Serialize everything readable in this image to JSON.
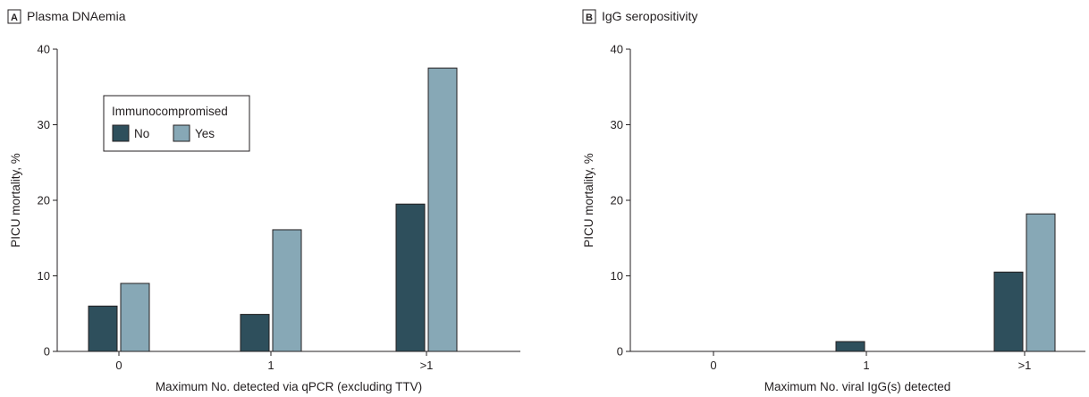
{
  "colors": {
    "no": "#2e4f5c",
    "yes": "#87a8b6",
    "stroke": "#231f20"
  },
  "chart_data": [
    {
      "type": "bar",
      "panel": "A",
      "title": "Plasma DNAemia",
      "xlabel": "Maximum No. detected via qPCR (excluding TTV)",
      "ylabel": "PICU mortality, %",
      "ylim": [
        0,
        40
      ],
      "yticks": [
        0,
        10,
        20,
        30,
        40
      ],
      "categories": [
        "0",
        "1",
        ">1"
      ],
      "legend": {
        "title": "Immunocompromised",
        "position": "upper-left"
      },
      "series": [
        {
          "name": "No",
          "values": [
            6.0,
            4.9,
            19.5
          ]
        },
        {
          "name": "Yes",
          "values": [
            9.0,
            16.1,
            37.5
          ]
        }
      ]
    },
    {
      "type": "bar",
      "panel": "B",
      "title": "IgG seropositivity",
      "xlabel": "Maximum No. viral IgG(s) detected",
      "ylabel": "PICU mortality, %",
      "ylim": [
        0,
        40
      ],
      "yticks": [
        0,
        10,
        20,
        30,
        40
      ],
      "categories": [
        "0",
        "1",
        ">1"
      ],
      "series": [
        {
          "name": "No",
          "values": [
            0,
            1.3,
            10.5
          ]
        },
        {
          "name": "Yes",
          "values": [
            0,
            0,
            18.2
          ]
        }
      ]
    }
  ]
}
